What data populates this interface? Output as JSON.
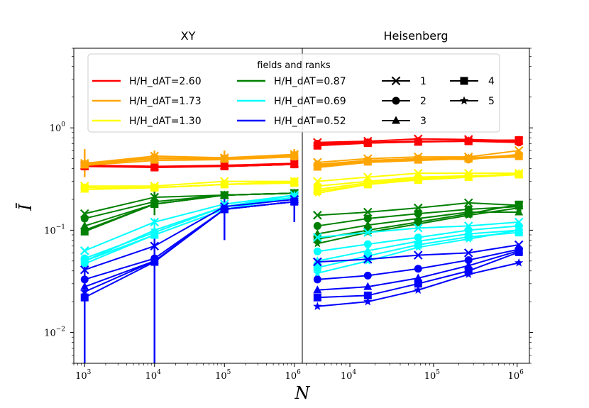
{
  "chart_data": {
    "type": "line",
    "xlabel": "N",
    "ylabel": "Ī",
    "yscale": "log",
    "xscale": "log",
    "ylim": [
      0.005,
      6
    ],
    "legend": {
      "title": "fields and ranks",
      "placement": "top-center",
      "fields": [
        {
          "label": "H/H_dAT=2.60",
          "color": "#ff0000"
        },
        {
          "label": "H/H_dAT=1.73",
          "color": "#ffa500"
        },
        {
          "label": "H/H_dAT=1.30",
          "color": "#ffff00"
        },
        {
          "label": "H/H_dAT=0.87",
          "color": "#008000"
        },
        {
          "label": "H/H_dAT=0.69",
          "color": "#00ffff"
        },
        {
          "label": "H/H_dAT=0.52",
          "color": "#0000ff"
        }
      ],
      "ranks": [
        {
          "label": "1",
          "marker": "x"
        },
        {
          "label": "2",
          "marker": "circle"
        },
        {
          "label": "3",
          "marker": "triangle"
        },
        {
          "label": "4",
          "marker": "square"
        },
        {
          "label": "5",
          "marker": "star"
        }
      ]
    },
    "panels": [
      {
        "title": "XY",
        "xlim": [
          700,
          1300000
        ],
        "xticks": [
          {
            "value": 1000,
            "base": "10",
            "exp": "3"
          },
          {
            "value": 10000,
            "base": "10",
            "exp": "4"
          },
          {
            "value": 100000,
            "base": "10",
            "exp": "5"
          },
          {
            "value": 1000000,
            "base": "10",
            "exp": "6"
          }
        ],
        "x": [
          1000,
          10000,
          100000,
          1000000
        ],
        "series": [
          {
            "field": 0,
            "rank": 1,
            "values": [
              0.43,
              0.42,
              0.43,
              0.45
            ]
          },
          {
            "field": 0,
            "rank": 2,
            "values": [
              0.42,
              0.42,
              0.42,
              0.44
            ]
          },
          {
            "field": 0,
            "rank": 3,
            "values": [
              0.42,
              0.42,
              0.42,
              0.44
            ]
          },
          {
            "field": 0,
            "rank": 4,
            "values": [
              0.42,
              0.41,
              0.42,
              0.44
            ]
          },
          {
            "field": 0,
            "rank": 5,
            "values": [
              0.43,
              0.42,
              0.42,
              0.44
            ]
          },
          {
            "field": 1,
            "rank": 1,
            "values": [
              0.45,
              0.53,
              0.51,
              0.55
            ]
          },
          {
            "field": 1,
            "rank": 2,
            "values": [
              0.44,
              0.5,
              0.5,
              0.53
            ]
          },
          {
            "field": 1,
            "rank": 3,
            "values": [
              0.43,
              0.48,
              0.49,
              0.52
            ]
          },
          {
            "field": 1,
            "rank": 4,
            "values": [
              0.44,
              0.5,
              0.5,
              0.54
            ]
          },
          {
            "field": 1,
            "rank": 5,
            "values": [
              0.45,
              0.51,
              0.5,
              0.53
            ]
          },
          {
            "field": 2,
            "rank": 1,
            "values": [
              0.27,
              0.27,
              0.3,
              0.3
            ]
          },
          {
            "field": 2,
            "rank": 2,
            "values": [
              0.26,
              0.26,
              0.28,
              0.3
            ]
          },
          {
            "field": 2,
            "rank": 3,
            "values": [
              0.25,
              0.26,
              0.28,
              0.29
            ]
          },
          {
            "field": 2,
            "rank": 4,
            "values": [
              0.26,
              0.26,
              0.28,
              0.29
            ]
          },
          {
            "field": 2,
            "rank": 5,
            "values": [
              0.26,
              0.26,
              0.28,
              0.29
            ]
          },
          {
            "field": 3,
            "rank": 1,
            "values": [
              0.145,
              0.21,
              0.22,
              0.23
            ]
          },
          {
            "field": 3,
            "rank": 2,
            "values": [
              0.13,
              0.19,
              0.22,
              0.23
            ]
          },
          {
            "field": 3,
            "rank": 3,
            "values": [
              0.11,
              0.18,
              0.22,
              0.23
            ]
          },
          {
            "field": 3,
            "rank": 4,
            "values": [
              0.097,
              0.18,
              0.22,
              0.23
            ]
          },
          {
            "field": 3,
            "rank": 5,
            "values": [
              0.1,
              0.18,
              0.22,
              0.23
            ]
          },
          {
            "field": 4,
            "rank": 1,
            "values": [
              0.063,
              0.12,
              0.18,
              0.22
            ]
          },
          {
            "field": 4,
            "rank": 2,
            "values": [
              0.053,
              0.095,
              0.17,
              0.21
            ]
          },
          {
            "field": 4,
            "rank": 3,
            "values": [
              0.047,
              0.09,
              0.16,
              0.21
            ]
          },
          {
            "field": 4,
            "rank": 4,
            "values": [
              0.05,
              0.09,
              0.16,
              0.21
            ]
          },
          {
            "field": 4,
            "rank": 5,
            "values": [
              0.05,
              0.1,
              0.17,
              0.22
            ]
          },
          {
            "field": 5,
            "rank": 1,
            "values": [
              0.041,
              0.07,
              0.17,
              0.2
            ]
          },
          {
            "field": 5,
            "rank": 2,
            "values": [
              0.033,
              0.053,
              0.16,
              0.19
            ]
          },
          {
            "field": 5,
            "rank": 3,
            "values": [
              0.028,
              0.05,
              0.16,
              0.19
            ]
          },
          {
            "field": 5,
            "rank": 4,
            "values": [
              0.022,
              0.049,
              0.16,
              0.19
            ]
          },
          {
            "field": 5,
            "rank": 5,
            "values": [
              0.025,
              0.05,
              0.16,
              0.19
            ]
          }
        ]
      },
      {
        "title": "Heisenberg",
        "xlim": [
          2700,
          1400000
        ],
        "xticks": [
          {
            "value": 10000,
            "base": "10",
            "exp": "4"
          },
          {
            "value": 100000,
            "base": "10",
            "exp": "5"
          },
          {
            "value": 1000000,
            "base": "10",
            "exp": "6"
          }
        ],
        "x": [
          4096,
          16384,
          65536,
          262144,
          1048576
        ],
        "series": [
          {
            "field": 0,
            "rank": 1,
            "values": [
              0.72,
              0.74,
              0.78,
              0.77,
              0.75
            ]
          },
          {
            "field": 0,
            "rank": 2,
            "values": [
              0.7,
              0.72,
              0.74,
              0.74,
              0.72
            ]
          },
          {
            "field": 0,
            "rank": 3,
            "values": [
              0.68,
              0.71,
              0.73,
              0.74,
              0.74
            ]
          },
          {
            "field": 0,
            "rank": 4,
            "values": [
              0.67,
              0.71,
              0.73,
              0.74,
              0.76
            ]
          },
          {
            "field": 0,
            "rank": 5,
            "values": [
              0.69,
              0.72,
              0.74,
              0.75,
              0.76
            ]
          },
          {
            "field": 1,
            "rank": 1,
            "values": [
              0.46,
              0.5,
              0.52,
              0.52,
              0.6
            ]
          },
          {
            "field": 1,
            "rank": 2,
            "values": [
              0.44,
              0.48,
              0.5,
              0.49,
              0.55
            ]
          },
          {
            "field": 1,
            "rank": 3,
            "values": [
              0.41,
              0.46,
              0.48,
              0.5,
              0.52
            ]
          },
          {
            "field": 1,
            "rank": 4,
            "values": [
              0.42,
              0.47,
              0.49,
              0.5,
              0.53
            ]
          },
          {
            "field": 1,
            "rank": 5,
            "values": [
              0.43,
              0.48,
              0.5,
              0.51,
              0.54
            ]
          },
          {
            "field": 2,
            "rank": 1,
            "values": [
              0.3,
              0.33,
              0.36,
              0.36,
              0.36
            ]
          },
          {
            "field": 2,
            "rank": 2,
            "values": [
              0.27,
              0.3,
              0.33,
              0.34,
              0.35
            ]
          },
          {
            "field": 2,
            "rank": 3,
            "values": [
              0.25,
              0.29,
              0.32,
              0.33,
              0.35
            ]
          },
          {
            "field": 2,
            "rank": 4,
            "values": [
              0.24,
              0.28,
              0.31,
              0.33,
              0.35
            ]
          },
          {
            "field": 2,
            "rank": 5,
            "values": [
              0.23,
              0.28,
              0.31,
              0.33,
              0.36
            ]
          },
          {
            "field": 3,
            "rank": 1,
            "values": [
              0.14,
              0.15,
              0.165,
              0.185,
              0.175
            ]
          },
          {
            "field": 3,
            "rank": 2,
            "values": [
              0.11,
              0.13,
              0.145,
              0.16,
              0.17
            ]
          },
          {
            "field": 3,
            "rank": 3,
            "values": [
              0.092,
              0.112,
              0.13,
              0.15,
              0.15
            ]
          },
          {
            "field": 3,
            "rank": 4,
            "values": [
              0.082,
              0.1,
              0.12,
              0.145,
              0.178
            ]
          },
          {
            "field": 3,
            "rank": 5,
            "values": [
              0.074,
              0.095,
              0.115,
              0.14,
              0.165
            ]
          },
          {
            "field": 4,
            "rank": 1,
            "values": [
              0.085,
              0.095,
              0.105,
              0.11,
              0.12
            ]
          },
          {
            "field": 4,
            "rank": 2,
            "values": [
              0.062,
              0.073,
              0.085,
              0.1,
              0.11
            ]
          },
          {
            "field": 4,
            "rank": 3,
            "values": [
              0.05,
              0.063,
              0.078,
              0.092,
              0.1
            ]
          },
          {
            "field": 4,
            "rank": 4,
            "values": [
              0.043,
              0.056,
              0.072,
              0.086,
              0.095
            ]
          },
          {
            "field": 4,
            "rank": 5,
            "values": [
              0.038,
              0.05,
              0.068,
              0.082,
              0.1
            ]
          },
          {
            "field": 5,
            "rank": 1,
            "values": [
              0.049,
              0.052,
              0.057,
              0.06,
              0.072
            ]
          },
          {
            "field": 5,
            "rank": 2,
            "values": [
              0.033,
              0.036,
              0.042,
              0.051,
              0.065
            ]
          },
          {
            "field": 5,
            "rank": 3,
            "values": [
              0.026,
              0.028,
              0.034,
              0.045,
              0.063
            ]
          },
          {
            "field": 5,
            "rank": 4,
            "values": [
              0.022,
              0.023,
              0.03,
              0.04,
              0.061
            ]
          },
          {
            "field": 5,
            "rank": 5,
            "values": [
              0.018,
              0.02,
              0.026,
              0.037,
              0.048
            ]
          }
        ]
      }
    ],
    "yticks": [
      {
        "value": 0.01,
        "base": "10",
        "exp": "−2"
      },
      {
        "value": 0.1,
        "base": "10",
        "exp": "−1"
      },
      {
        "value": 1,
        "base": "10",
        "exp": "0"
      }
    ]
  }
}
